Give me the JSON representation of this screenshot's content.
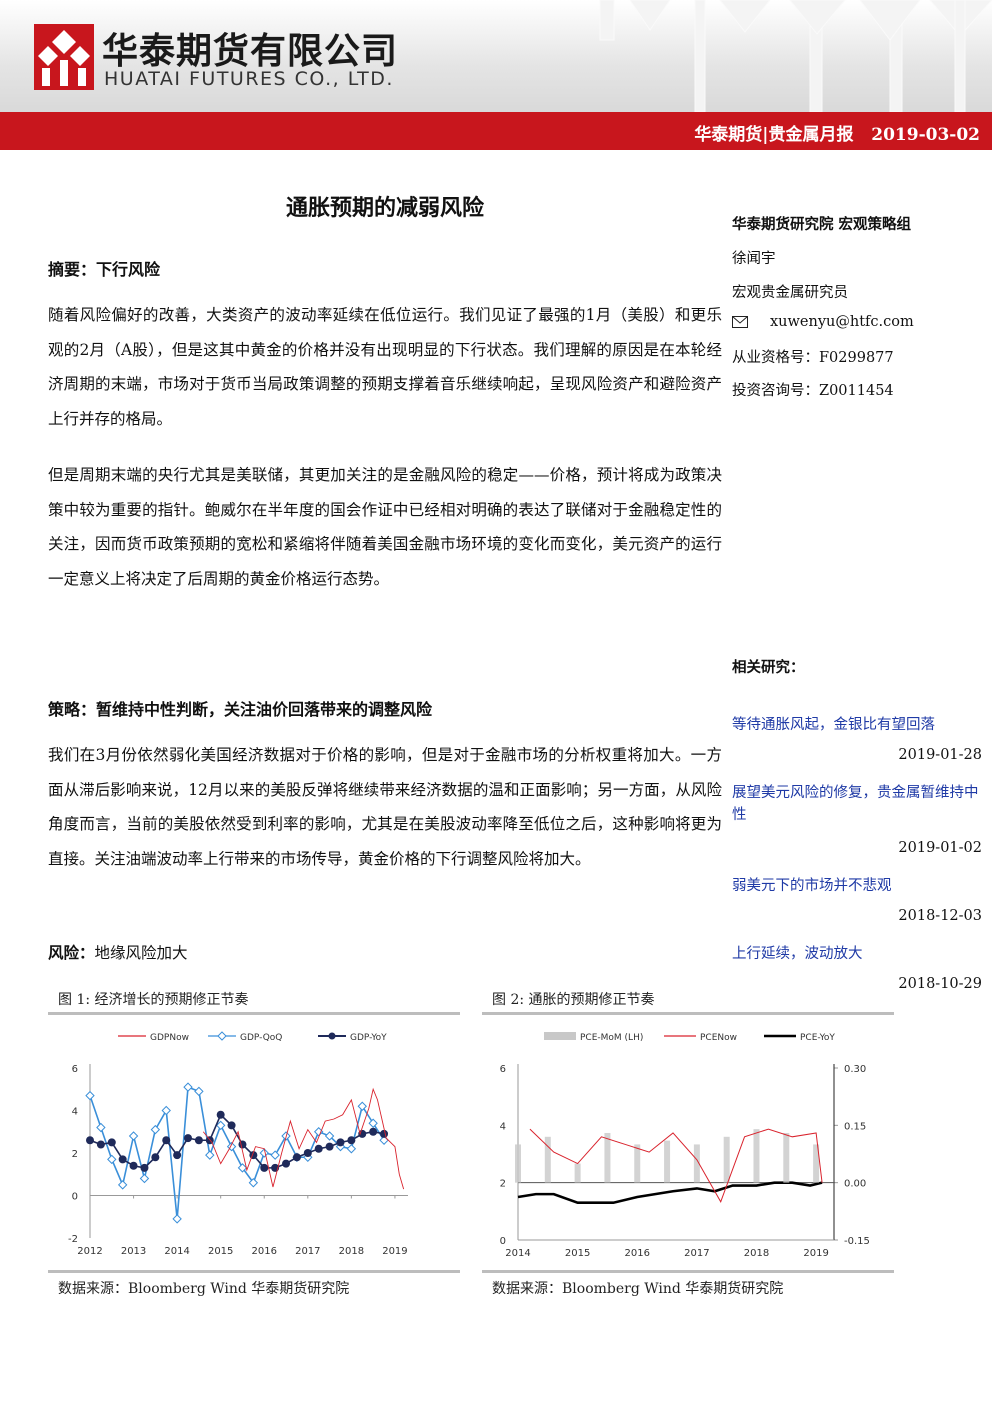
{
  "header": {
    "company_cn": "华泰期货有限公司",
    "company_en": "HUATAI FUTURES CO., LTD.",
    "bar_text": "华泰期货|贵金属月报   2019-03-02",
    "accent": "#c8161d"
  },
  "title": "通胀预期的减弱风险",
  "summary": {
    "label": "摘要：",
    "heading": "下行风险",
    "p1": "随着风险偏好的改善，大类资产的波动率延续在低位运行。我们见证了最强的1月（美股）和更乐观的2月（A股），但是这其中黄金的价格并没有出现明显的下行状态。我们理解的原因是在本轮经济周期的末端，市场对于货币当局政策调整的预期支撑着音乐继续响起，呈现风险资产和避险资产上行并存的格局。",
    "p2": "但是周期末端的央行尤其是美联储，其更加关注的是金融风险的稳定——价格，预计将成为政策决策中较为重要的指针。鲍威尔在半年度的国会作证中已经相对明确的表达了联储对于金融稳定性的关注，因而货币政策预期的宽松和紧缩将伴随着美国金融市场环境的变化而变化，美元资产的运行一定意义上将决定了后周期的黄金价格运行态势。"
  },
  "strategy": {
    "label": "策略：",
    "heading": "暂维持中性判断，关注油价回落带来的调整风险",
    "p1": "我们在3月份依然弱化美国经济数据对于价格的影响，但是对于金融市场的分析权重将加大。一方面从滞后影响来说，12月以来的美股反弹将继续带来经济数据的温和正面影响；另一方面，从风险角度而言，当前的美股依然受到利率的影响，尤其是在美股波动率降至低位之后，这种影响将更为直接。关注油端波动率上行带来的市场传导，黄金价格的下行调整风险将加大。"
  },
  "risk": {
    "label": "风险：",
    "text": "地缘风险加大"
  },
  "sidebar": {
    "org": "华泰期货研究院  宏观策略组",
    "author": "徐闻宇",
    "role": "宏观贵金属研究员",
    "email": "xuwenyu@htfc.com",
    "license": "从业资格号：F0299877",
    "consult": "投资咨询号：Z0011454",
    "related_label": "相关研究：",
    "related": [
      {
        "title": "等待通胀风起，金银比有望回落",
        "date": "2019-01-28"
      },
      {
        "title": "展望美元风险的修复，贵金属暂维持中性",
        "date": "2019-01-02"
      },
      {
        "title": "弱美元下的市场并不悲观",
        "date": "2018-12-03"
      },
      {
        "title": "上行延续，波动放大",
        "date": "2018-10-29"
      }
    ]
  },
  "fig1": {
    "caption": "图 1:  经济增长的预期修正节奏",
    "source": "数据来源：Bloomberg   Wind   华泰期货研究院"
  },
  "fig2": {
    "caption": "图 2:  通胀的预期修正节奏",
    "source": "数据来源：Bloomberg   Wind   华泰期货研究院"
  },
  "chart_data": [
    {
      "type": "line",
      "title": "",
      "legend": [
        "GDPNow",
        "GDP-QoQ",
        "GDP-YoY"
      ],
      "legend_position": "top",
      "colors": {
        "GDPNow": "#d9232d",
        "GDP-QoQ": "#3a8fd9",
        "GDP-YoY": "#1f2a5a"
      },
      "x_ticks": [
        "2012",
        "2013",
        "2014",
        "2015",
        "2016",
        "2017",
        "2018",
        "2019"
      ],
      "y_ticks": [
        "-2",
        "0",
        "2",
        "4",
        "6"
      ],
      "ylim": [
        -2,
        6
      ],
      "xlim": [
        2012,
        2019.3
      ],
      "series": [
        {
          "name": "GDP-QoQ",
          "x": [
            2012.0,
            2012.25,
            2012.5,
            2012.75,
            2013.0,
            2013.25,
            2013.5,
            2013.75,
            2014.0,
            2014.25,
            2014.5,
            2014.75,
            2015.0,
            2015.25,
            2015.5,
            2015.75,
            2016.0,
            2016.25,
            2016.5,
            2016.75,
            2017.0,
            2017.25,
            2017.5,
            2017.75,
            2018.0,
            2018.25,
            2018.5,
            2018.75
          ],
          "values": [
            4.7,
            3.2,
            1.7,
            0.5,
            2.8,
            0.8,
            3.1,
            4.0,
            -1.1,
            5.1,
            4.9,
            1.9,
            3.3,
            2.3,
            1.3,
            0.6,
            2.0,
            1.9,
            2.8,
            1.8,
            1.8,
            3.0,
            2.8,
            2.3,
            2.2,
            4.2,
            3.4,
            2.6
          ]
        },
        {
          "name": "GDP-YoY",
          "x": [
            2012.0,
            2012.25,
            2012.5,
            2012.75,
            2013.0,
            2013.25,
            2013.5,
            2013.75,
            2014.0,
            2014.25,
            2014.5,
            2014.75,
            2015.0,
            2015.25,
            2015.5,
            2015.75,
            2016.0,
            2016.25,
            2016.5,
            2016.75,
            2017.0,
            2017.25,
            2017.5,
            2017.75,
            2018.0,
            2018.25,
            2018.5,
            2018.75
          ],
          "values": [
            2.6,
            2.4,
            2.5,
            1.7,
            1.4,
            1.3,
            1.8,
            2.6,
            1.9,
            2.7,
            2.6,
            2.6,
            3.8,
            3.3,
            2.4,
            1.9,
            1.3,
            1.3,
            1.5,
            1.8,
            2.0,
            2.2,
            2.3,
            2.5,
            2.6,
            2.9,
            3.0,
            2.9
          ]
        },
        {
          "name": "GDPNow",
          "x": [
            2014.6,
            2014.8,
            2015.0,
            2015.2,
            2015.4,
            2015.6,
            2015.8,
            2016.0,
            2016.2,
            2016.4,
            2016.6,
            2016.8,
            2017.0,
            2017.2,
            2017.4,
            2017.6,
            2017.8,
            2018.0,
            2018.2,
            2018.4,
            2018.5,
            2018.6,
            2018.8,
            2019.0,
            2019.1,
            2019.2
          ],
          "values": [
            3.0,
            2.5,
            1.5,
            2.2,
            3.0,
            1.2,
            2.3,
            2.2,
            0.4,
            2.0,
            3.5,
            2.2,
            3.1,
            2.5,
            3.5,
            3.6,
            3.8,
            4.5,
            2.9,
            4.1,
            5.0,
            4.5,
            2.7,
            2.3,
            1.0,
            0.3
          ]
        }
      ]
    },
    {
      "type": "line",
      "title": "",
      "legend": [
        "PCE-MoM (LH)",
        "PCENow",
        "PCE-YoY"
      ],
      "legend_position": "top",
      "colors": {
        "PCE-MoM (LH)": "#c8c8c8",
        "PCENow": "#d9232d",
        "PCE-YoY": "#000000"
      },
      "x_ticks": [
        "2014",
        "2015",
        "2016",
        "2017",
        "2018",
        "2019"
      ],
      "y_ticks_left": [
        "0",
        "2",
        "4",
        "6"
      ],
      "y_ticks_right": [
        "-0.15",
        "0.00",
        "0.15",
        "0.30"
      ],
      "ylim_left": [
        0,
        6
      ],
      "ylim_right": [
        -0.15,
        0.3
      ],
      "xlim": [
        2014,
        2019.3
      ],
      "series": [
        {
          "name": "PCE-YoY",
          "axis": "left",
          "x": [
            2014.0,
            2014.3,
            2014.6,
            2015.0,
            2015.3,
            2015.6,
            2016.0,
            2016.3,
            2016.6,
            2017.0,
            2017.3,
            2017.6,
            2018.0,
            2018.3,
            2018.6,
            2018.9,
            2019.1
          ],
          "values": [
            1.5,
            1.6,
            1.6,
            1.3,
            1.3,
            1.3,
            1.5,
            1.6,
            1.7,
            1.8,
            1.7,
            1.9,
            1.9,
            2.0,
            2.0,
            1.9,
            2.0
          ]
        },
        {
          "name": "PCE-MoM (LH)",
          "axis": "right",
          "x": [
            2014.0,
            2014.5,
            2015.0,
            2015.5,
            2016.0,
            2016.5,
            2017.0,
            2017.5,
            2018.0,
            2018.5,
            2019.0
          ],
          "values": [
            0.1,
            0.12,
            0.05,
            0.13,
            0.1,
            0.11,
            0.1,
            0.12,
            0.14,
            0.13,
            0.1
          ]
        },
        {
          "name": "PCENow",
          "axis": "right",
          "x": [
            2014.2,
            2014.6,
            2015.0,
            2015.4,
            2015.8,
            2016.2,
            2016.6,
            2017.0,
            2017.4,
            2017.8,
            2018.2,
            2018.6,
            2019.0,
            2019.1
          ],
          "values": [
            0.14,
            0.08,
            0.05,
            0.12,
            0.1,
            0.08,
            0.13,
            0.06,
            -0.05,
            0.12,
            0.14,
            0.12,
            0.13,
            0.0
          ]
        }
      ]
    }
  ]
}
